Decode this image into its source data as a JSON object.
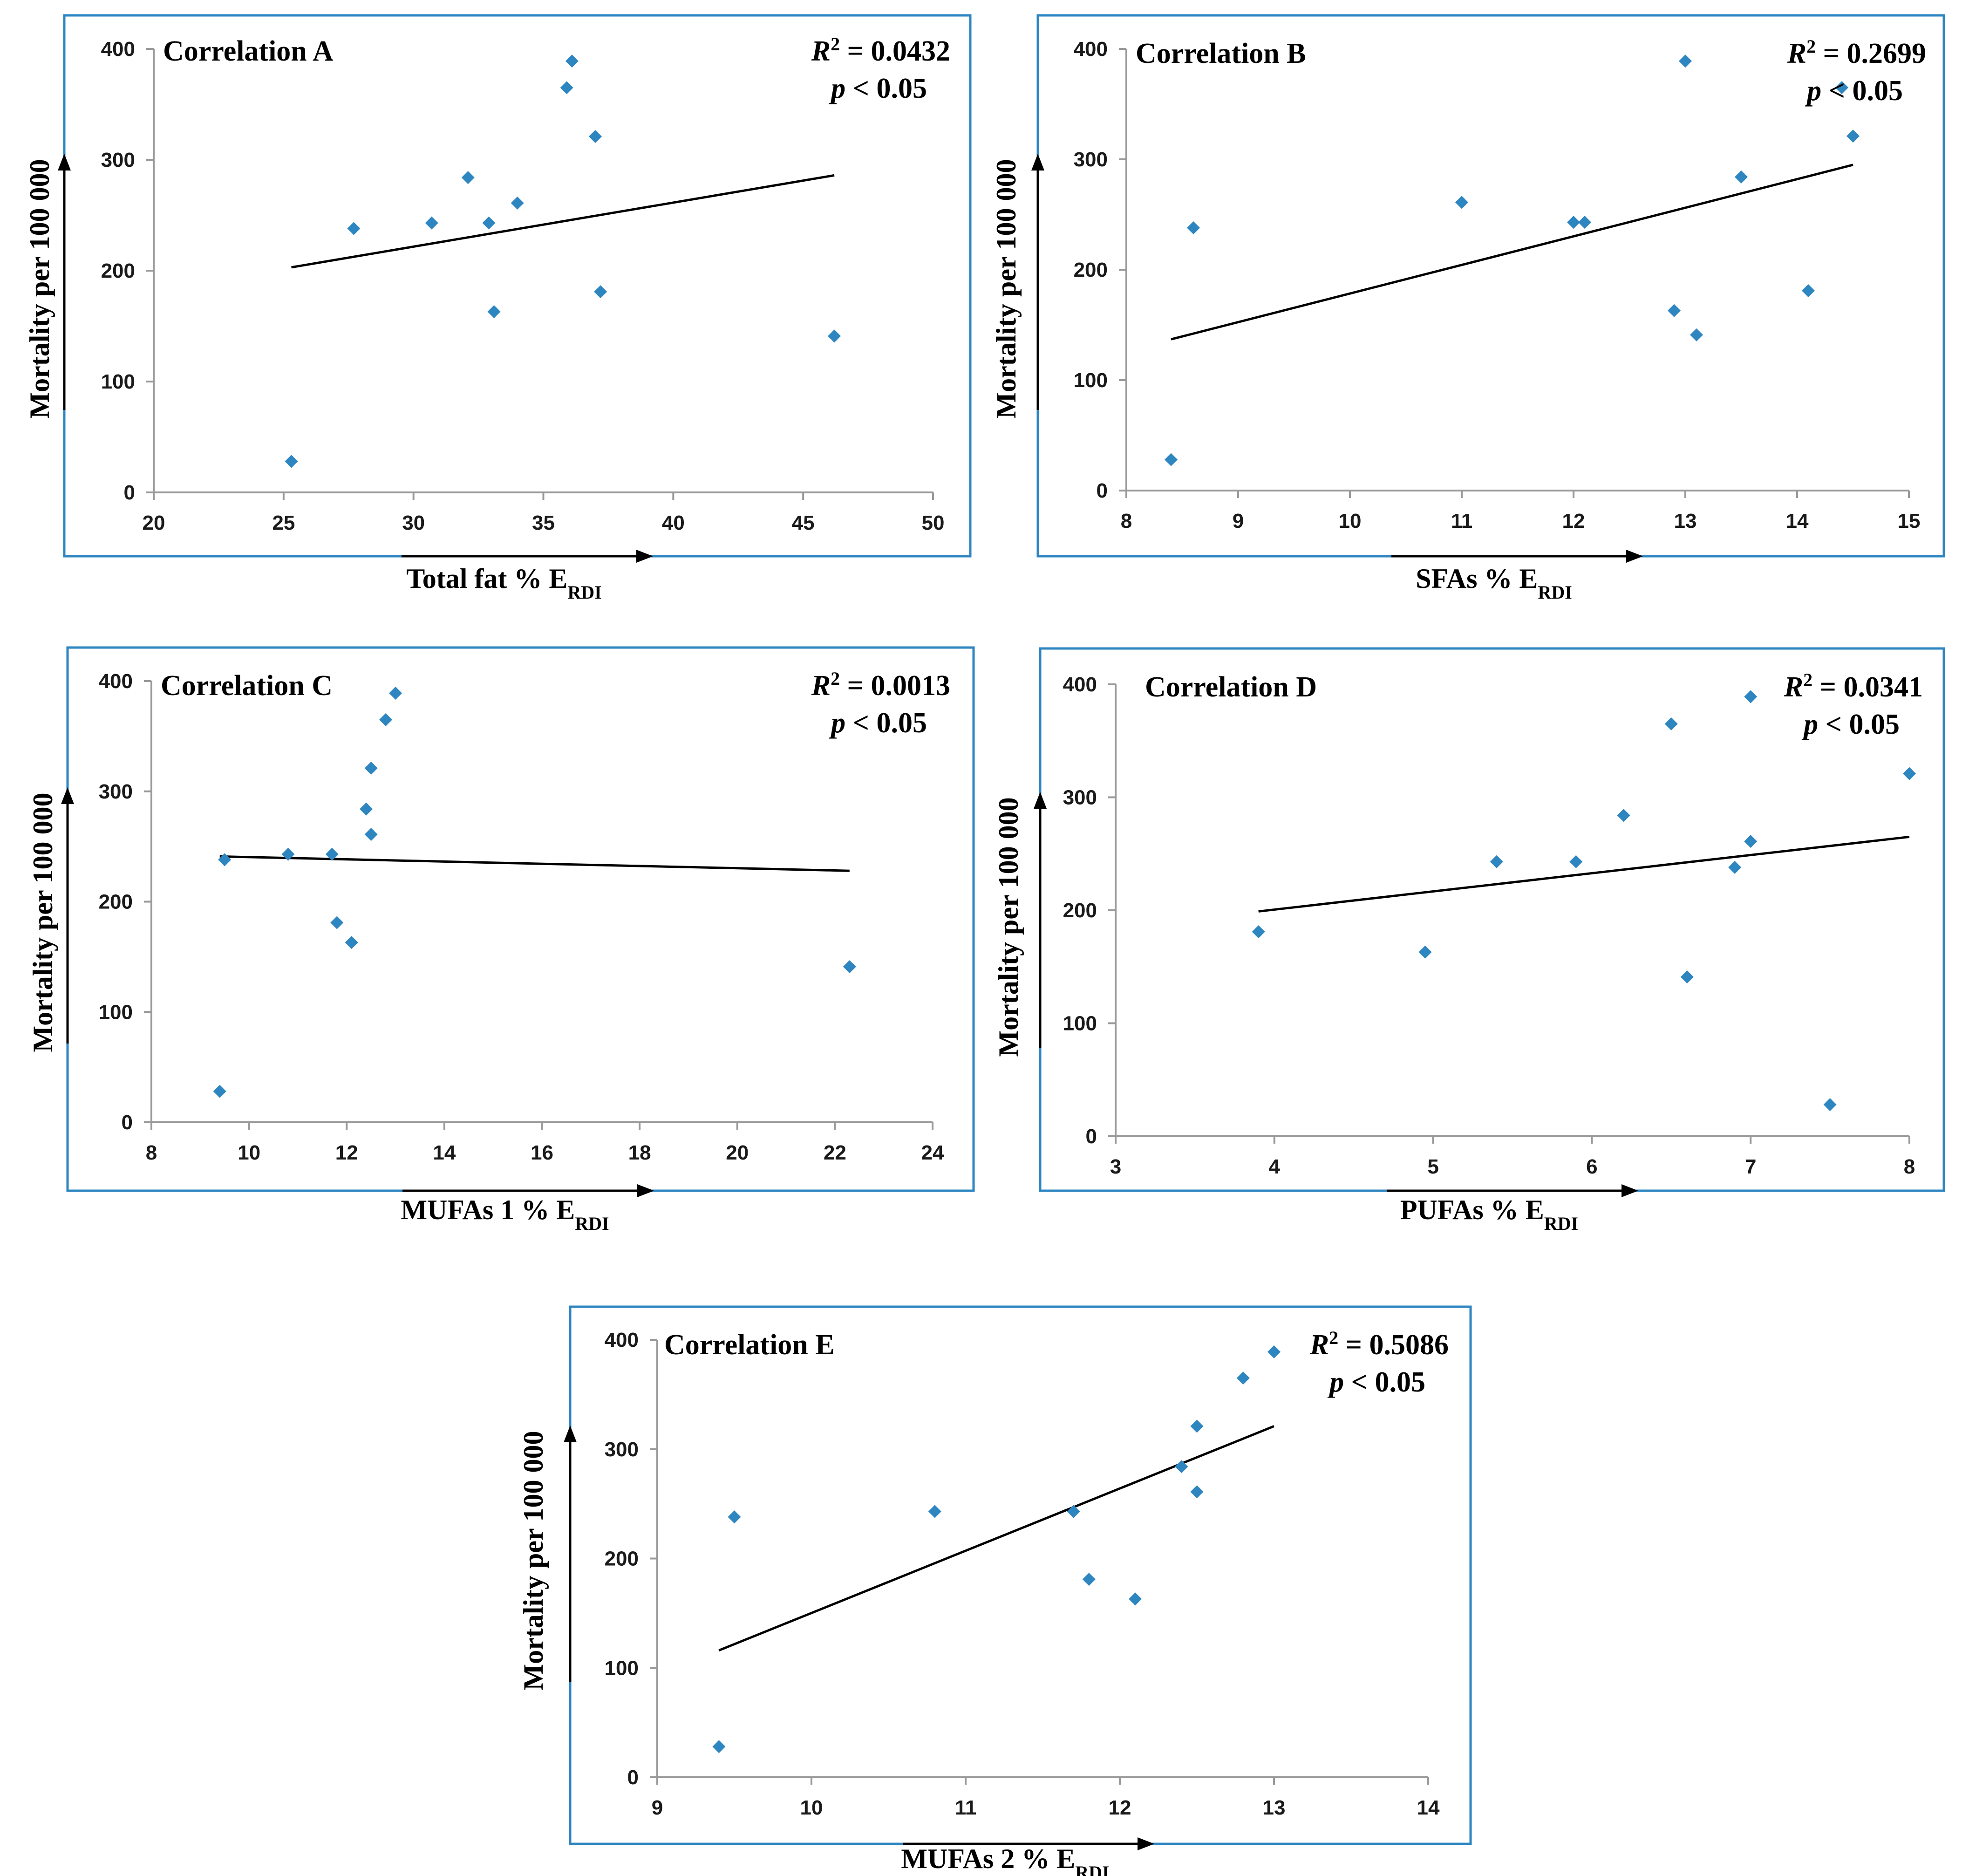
{
  "figure": {
    "description_label": ""
  },
  "colors": {
    "point": "#2E86C1",
    "frame": "#2E86C1",
    "axis": "#999999",
    "trend": "#000000"
  },
  "chart_data": [
    {
      "id": "A",
      "type": "scatter",
      "title": "Correlation A",
      "r2_prefix": "R",
      "r2_value": " = 0.0432",
      "p_prefix": "p",
      "p_value": " < 0.05",
      "xlabel": "Total fat % E",
      "xlabel_sub": "RDI",
      "ylabel": "Mortality per 100 000",
      "xlim": [
        20,
        50
      ],
      "xticks": [
        20,
        25,
        30,
        35,
        40,
        45,
        50
      ],
      "ylim": [
        0,
        400
      ],
      "yticks": [
        0,
        100,
        200,
        300,
        400
      ],
      "x": [
        25.3,
        27.7,
        30.7,
        32.1,
        32.9,
        33.1,
        34,
        35.9,
        36.1,
        37,
        37.2,
        46.2
      ],
      "y": [
        28,
        238,
        243,
        284,
        243,
        163,
        261,
        365,
        389,
        321,
        181,
        141
      ],
      "trend": {
        "x": [
          25.3,
          46.2
        ],
        "y": [
          203,
          286
        ]
      }
    },
    {
      "id": "B",
      "type": "scatter",
      "title": "Correlation B",
      "r2_prefix": "R",
      "r2_value": " = 0.2699",
      "p_prefix": "p",
      "p_value": " < 0.05",
      "xlabel": "SFAs % E",
      "xlabel_sub": "RDI",
      "ylabel": "Mortality per 100 000",
      "xlim": [
        8,
        15
      ],
      "xticks": [
        8,
        9,
        10,
        11,
        12,
        13,
        14,
        15
      ],
      "ylim": [
        0,
        400
      ],
      "yticks": [
        0,
        100,
        200,
        300,
        400
      ],
      "x": [
        8.4,
        8.6,
        11,
        12,
        12.1,
        12.9,
        13,
        13.1,
        13.5,
        14.1,
        14.4,
        14.5
      ],
      "y": [
        28,
        238,
        261,
        243,
        243,
        163,
        389,
        141,
        284,
        181,
        365,
        321
      ],
      "trend": {
        "x": [
          8.4,
          14.5
        ],
        "y": [
          137,
          295
        ]
      }
    },
    {
      "id": "C",
      "type": "scatter",
      "title": "Correlation C",
      "r2_prefix": "R",
      "r2_value": " = 0.0013",
      "p_prefix": "p",
      "p_value": " < 0.05",
      "xlabel": "MUFAs 1 % E",
      "xlabel_sub": "RDI",
      "ylabel": "Mortality per 100 000",
      "xlim": [
        8,
        24
      ],
      "xticks": [
        8,
        10,
        12,
        14,
        16,
        18,
        20,
        22,
        24
      ],
      "ylim": [
        0,
        400
      ],
      "yticks": [
        0,
        100,
        200,
        300,
        400
      ],
      "x": [
        9.4,
        9.5,
        10.8,
        11.7,
        11.8,
        12.1,
        12.4,
        12.5,
        12.5,
        12.8,
        13,
        22.3
      ],
      "y": [
        28,
        238,
        243,
        243,
        181,
        163,
        284,
        261,
        321,
        365,
        389,
        141
      ],
      "trend": {
        "x": [
          9.4,
          22.3
        ],
        "y": [
          241,
          228
        ]
      }
    },
    {
      "id": "D",
      "type": "scatter",
      "title": "Correlation D",
      "r2_prefix": "R",
      "r2_value": " = 0.0341",
      "p_prefix": "p",
      "p_value": " < 0.05",
      "xlabel": "PUFAs % E",
      "xlabel_sub": "RDI",
      "ylabel": "Mortality per 100 000",
      "xlim": [
        3,
        8
      ],
      "xticks": [
        3,
        4,
        5,
        6,
        7,
        8
      ],
      "ylim": [
        0,
        400
      ],
      "yticks": [
        0,
        100,
        200,
        300,
        400
      ],
      "x": [
        3.9,
        4.95,
        5.4,
        5.9,
        6.2,
        6.5,
        6.6,
        6.9,
        7,
        7,
        7.5,
        8
      ],
      "y": [
        181,
        163,
        243,
        243,
        284,
        365,
        141,
        238,
        261,
        389,
        28,
        321
      ],
      "trend": {
        "x": [
          3.9,
          8
        ],
        "y": [
          199,
          265
        ]
      }
    },
    {
      "id": "E",
      "type": "scatter",
      "title": "Correlation E",
      "r2_prefix": "R",
      "r2_value": " = 0.5086",
      "p_prefix": "p",
      "p_value": " < 0.05",
      "xlabel": "MUFAs 2 % E",
      "xlabel_sub": "RDI",
      "ylabel": "Mortality per 100 000",
      "xlim": [
        9,
        14
      ],
      "xticks": [
        9,
        10,
        11,
        12,
        13,
        14
      ],
      "ylim": [
        0,
        400
      ],
      "yticks": [
        0,
        100,
        200,
        300,
        400
      ],
      "x": [
        9.4,
        9.5,
        10.8,
        11.7,
        11.8,
        12.1,
        12.4,
        12.5,
        12.5,
        12.8,
        13
      ],
      "y": [
        28,
        238,
        243,
        243,
        181,
        163,
        284,
        261,
        321,
        365,
        389
      ],
      "trend": {
        "x": [
          9.4,
          13
        ],
        "y": [
          116,
          321
        ]
      }
    }
  ]
}
